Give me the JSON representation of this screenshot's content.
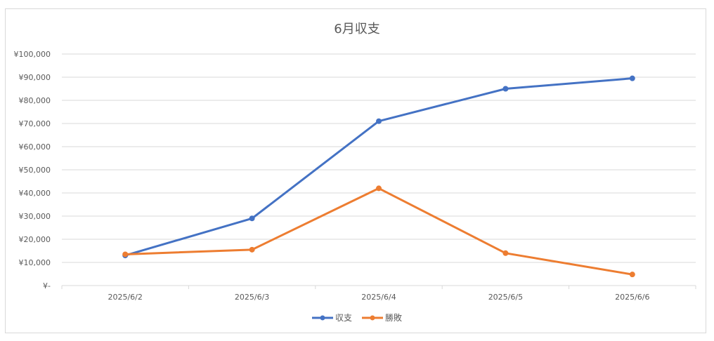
{
  "chart_data": {
    "type": "line",
    "title": "6月収支",
    "categories": [
      "2025/6/2",
      "2025/6/3",
      "2025/6/4",
      "2025/6/5",
      "2025/6/6"
    ],
    "series": [
      {
        "name": "収支",
        "color": "#4472C4",
        "values": [
          13000,
          29000,
          71000,
          85000,
          89500
        ]
      },
      {
        "name": "勝敗",
        "color": "#ED7D31",
        "values": [
          13500,
          15500,
          42000,
          14000,
          4800
        ]
      }
    ],
    "ylim": [
      0,
      100000
    ],
    "y_ticks": [
      {
        "value": 0,
        "label": "¥-"
      },
      {
        "value": 10000,
        "label": "¥10,000"
      },
      {
        "value": 20000,
        "label": "¥20,000"
      },
      {
        "value": 30000,
        "label": "¥30,000"
      },
      {
        "value": 40000,
        "label": "¥40,000"
      },
      {
        "value": 50000,
        "label": "¥50,000"
      },
      {
        "value": 60000,
        "label": "¥60,000"
      },
      {
        "value": 70000,
        "label": "¥70,000"
      },
      {
        "value": 80000,
        "label": "¥80,000"
      },
      {
        "value": 90000,
        "label": "¥90,000"
      },
      {
        "value": 100000,
        "label": "¥100,000"
      }
    ],
    "grid": true,
    "legend_position": "bottom",
    "gridline_color": "#d9d9d9"
  }
}
